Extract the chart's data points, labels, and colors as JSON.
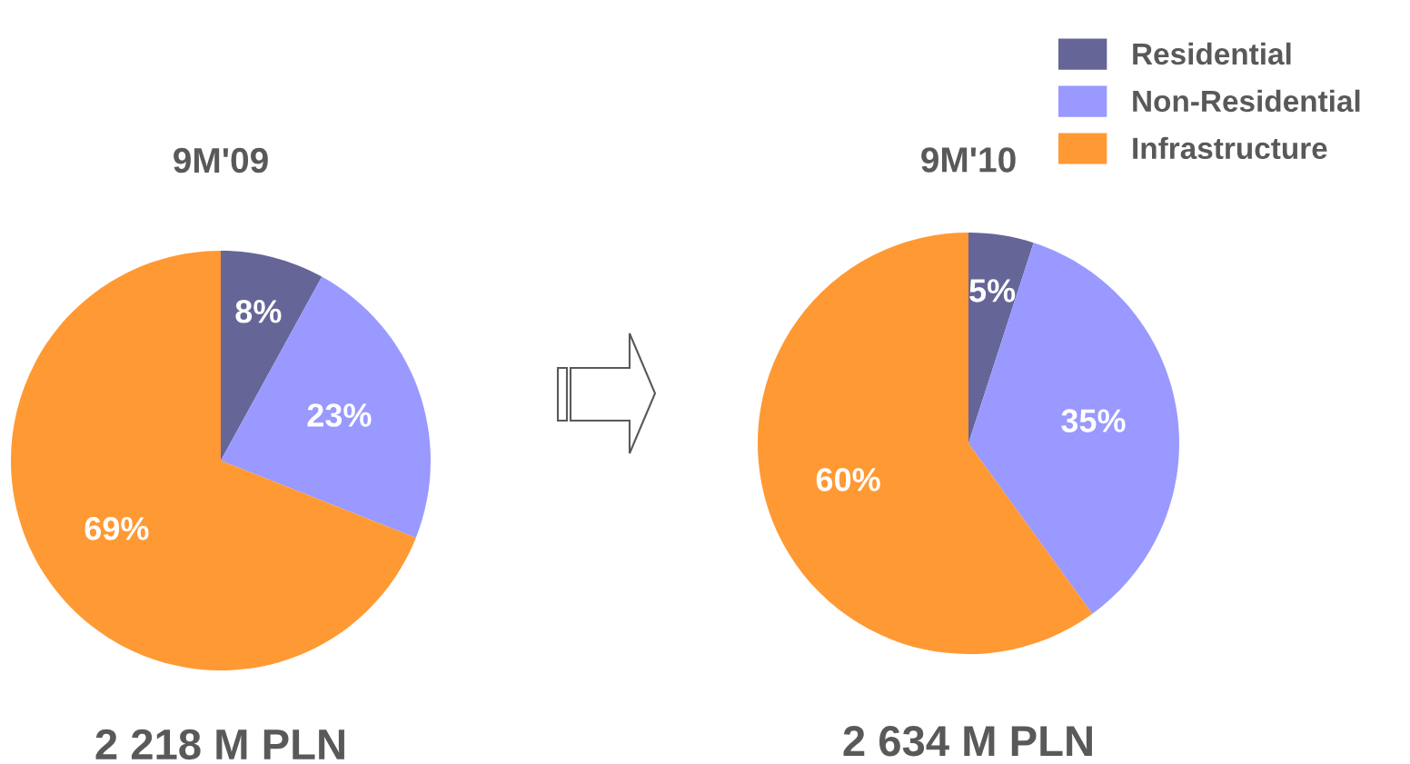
{
  "chart_data": [
    {
      "type": "pie",
      "title": "9M'09",
      "categories": [
        "Residential",
        "Non-Residential",
        "Infrastructure"
      ],
      "values": [
        8,
        23,
        69
      ],
      "colors": [
        "#656598",
        "#9999ff",
        "#ff9933"
      ],
      "value_labels": [
        "8%",
        "23%",
        "69%"
      ],
      "annotations": [
        "2 218 M PLN"
      ],
      "legend": "top right"
    },
    {
      "type": "pie",
      "title": "9M'10",
      "categories": [
        null,
        null,
        null
      ],
      "values": [
        5,
        35,
        60
      ],
      "colors": [
        "#656598",
        "#9999ff",
        "#ff9933"
      ],
      "value_labels": [
        "5%",
        "35%",
        "60%"
      ],
      "annotations": [
        "2 634 M PLN"
      ]
    }
  ]
}
